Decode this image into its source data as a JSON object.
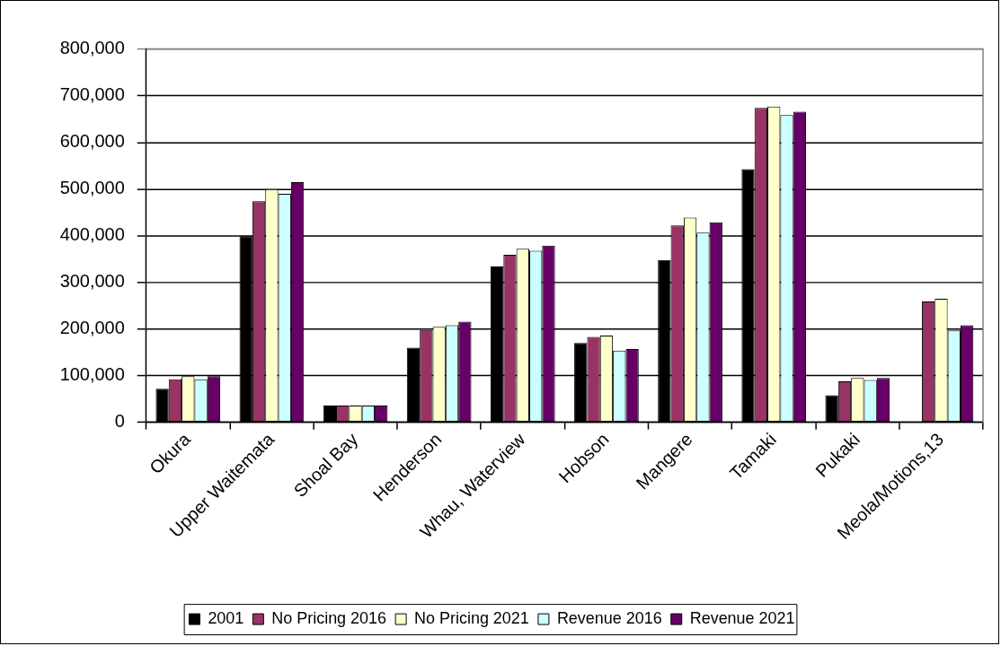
{
  "chart_data": {
    "type": "bar",
    "categories": [
      "Okura",
      "Upper Waitemata",
      "Shoal Bay",
      "Henderson",
      "Whau, Waterview",
      "Hobson",
      "Mangere",
      "Tamaki",
      "Pukaki",
      "Meola/Motions,13"
    ],
    "series": [
      {
        "name": "2001",
        "color": "#000000",
        "values": [
          72000,
          399000,
          36000,
          160000,
          334000,
          170000,
          348000,
          543000,
          58000,
          null
        ]
      },
      {
        "name": "No Pricing 2016",
        "color": "#993366",
        "values": [
          92000,
          474000,
          36000,
          198000,
          359000,
          183000,
          422000,
          674000,
          88000,
          259000
        ]
      },
      {
        "name": "No Pricing 2021",
        "color": "#ffffcc",
        "values": [
          99000,
          500000,
          36000,
          205000,
          372000,
          186000,
          439000,
          677000,
          95000,
          265000
        ]
      },
      {
        "name": "Revenue 2016",
        "color": "#ccffff",
        "values": [
          92000,
          490000,
          36000,
          208000,
          368000,
          154000,
          407000,
          659000,
          91000,
          197000
        ]
      },
      {
        "name": "Revenue 2021",
        "color": "#660066",
        "values": [
          99000,
          515000,
          36000,
          216000,
          379000,
          157000,
          429000,
          666000,
          95000,
          208000
        ]
      }
    ],
    "ylim": [
      0,
      800000
    ],
    "yticks": [
      {
        "value": 0,
        "label": "0"
      },
      {
        "value": 100000,
        "label": "100,000"
      },
      {
        "value": 200000,
        "label": "200,000"
      },
      {
        "value": 300000,
        "label": "300,000"
      },
      {
        "value": 400000,
        "label": "400,000"
      },
      {
        "value": 500000,
        "label": "500,000"
      },
      {
        "value": 600000,
        "label": "600,000"
      },
      {
        "value": 700000,
        "label": "700,000"
      },
      {
        "value": 800000,
        "label": "800,000"
      }
    ],
    "grid": "y",
    "legend": "bottom"
  }
}
